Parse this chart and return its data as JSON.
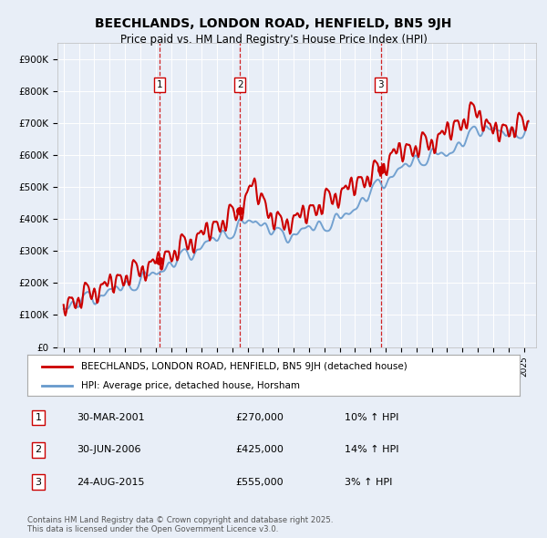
{
  "title1": "BEECHLANDS, LONDON ROAD, HENFIELD, BN5 9JH",
  "title2": "Price paid vs. HM Land Registry's House Price Index (HPI)",
  "ylim": [
    0,
    950000
  ],
  "yticks": [
    0,
    100000,
    200000,
    300000,
    400000,
    500000,
    600000,
    700000,
    800000,
    900000
  ],
  "ytick_labels": [
    "£0",
    "£100K",
    "£200K",
    "£300K",
    "£400K",
    "£500K",
    "£600K",
    "£700K",
    "£800K",
    "£900K"
  ],
  "background_color": "#e8eef7",
  "plot_bg_color": "#e8eef7",
  "grid_color": "#ffffff",
  "sale_color": "#cc0000",
  "hpi_color": "#6699cc",
  "transactions": [
    {
      "num": 1,
      "date": "30-MAR-2001",
      "price": 270000,
      "hpi_pct": "10%",
      "x": 2001.25
    },
    {
      "num": 2,
      "date": "30-JUN-2006",
      "price": 425000,
      "hpi_pct": "14%",
      "x": 2006.5
    },
    {
      "num": 3,
      "date": "24-AUG-2015",
      "price": 555000,
      "hpi_pct": "3%",
      "x": 2015.67
    }
  ],
  "footer": "Contains HM Land Registry data © Crown copyright and database right 2025.\nThis data is licensed under the Open Government Licence v3.0.",
  "legend_label1": "BEECHLANDS, LONDON ROAD, HENFIELD, BN5 9JH (detached house)",
  "legend_label2": "HPI: Average price, detached house, Horsham",
  "table_rows": [
    [
      "1",
      "30-MAR-2001",
      "£270,000",
      "10% ↑ HPI"
    ],
    [
      "2",
      "30-JUN-2006",
      "£425,000",
      "14% ↑ HPI"
    ],
    [
      "3",
      "24-AUG-2015",
      "£555,000",
      "3% ↑ HPI"
    ]
  ]
}
